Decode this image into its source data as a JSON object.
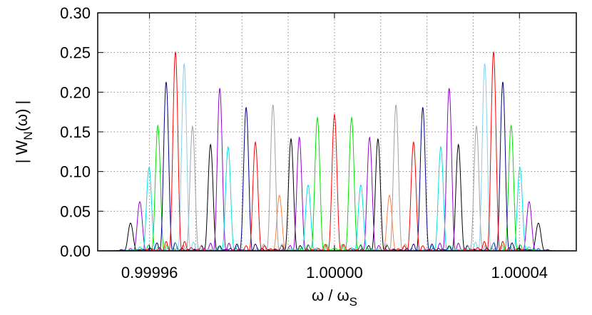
{
  "chart_data": {
    "type": "spectrum",
    "xlabel": [
      "ω / ω",
      "S"
    ],
    "ylabel": [
      "| W",
      "N",
      "(ω) |"
    ],
    "xlim": [
      0.9999488,
      1.0000523
    ],
    "ylim": [
      0,
      0.3
    ],
    "xticks": [
      {
        "value": 0.99996,
        "label": "0.99996"
      },
      {
        "value": 1.0,
        "label": "1.00000"
      },
      {
        "value": 1.00004,
        "label": "1.00004"
      }
    ],
    "xgrid": [
      0.99996,
      0.99997,
      0.99998,
      0.99999,
      1.0,
      1.00001,
      1.00002,
      1.00003,
      1.00004
    ],
    "yticks": [
      {
        "value": 0,
        "label": "0.00"
      },
      {
        "value": 0.05,
        "label": "0.05"
      },
      {
        "value": 0.1,
        "label": "0.10"
      },
      {
        "value": 0.15,
        "label": "0.15"
      },
      {
        "value": 0.2,
        "label": "0.20"
      },
      {
        "value": 0.25,
        "label": "0.25"
      },
      {
        "value": 0.3,
        "label": "0.30"
      }
    ],
    "grid": true,
    "series": [
      {
        "color": "#ff8040",
        "x": [
          0.9999881,
          1.0000119
        ],
        "values": [
          0.07,
          0.07
        ]
      },
      {
        "color": "#000000",
        "x": [
          0.9999559,
          0.9999732,
          0.9999906,
          1.0000094,
          1.0000268,
          1.0000441
        ],
        "values": [
          0.035,
          0.134,
          0.141,
          0.141,
          0.134,
          0.035
        ]
      },
      {
        "color": "#9400d3",
        "x": [
          0.9999579,
          0.9999752,
          0.9999924,
          1.0000076,
          1.0000248,
          1.0000421
        ],
        "values": [
          0.062,
          0.205,
          0.143,
          0.143,
          0.205,
          0.062
        ]
      },
      {
        "color": "#00e0e0",
        "x": [
          0.9999599,
          0.999977,
          0.9999943,
          1.0000057,
          1.000023,
          1.0000401
        ],
        "values": [
          0.105,
          0.131,
          0.083,
          0.083,
          0.131,
          0.105
        ]
      },
      {
        "color": "#00e000",
        "x": [
          0.9999618,
          0.9999963,
          1.0000037,
          1.0000382
        ],
        "values": [
          0.158,
          0.168,
          0.168,
          0.158
        ]
      },
      {
        "color": "#a0a0a0",
        "x": [
          0.9999693,
          0.9999867,
          1.0000133,
          1.0000307
        ],
        "values": [
          0.157,
          0.184,
          0.184,
          0.157
        ]
      },
      {
        "color": "#000080",
        "x": [
          0.9999636,
          0.9999809,
          1.0000191,
          1.0000364
        ],
        "values": [
          0.213,
          0.181,
          0.181,
          0.213
        ]
      },
      {
        "color": "#87ceeb",
        "x": [
          0.9999675,
          1.0000325
        ],
        "values": [
          0.236,
          0.236
        ]
      },
      {
        "color": "#ff0000",
        "x": [
          0.9999656,
          0.9999829,
          1.0,
          1.0000171,
          1.0000344
        ],
        "values": [
          0.251,
          0.137,
          0.172,
          0.137,
          0.251
        ]
      }
    ]
  }
}
